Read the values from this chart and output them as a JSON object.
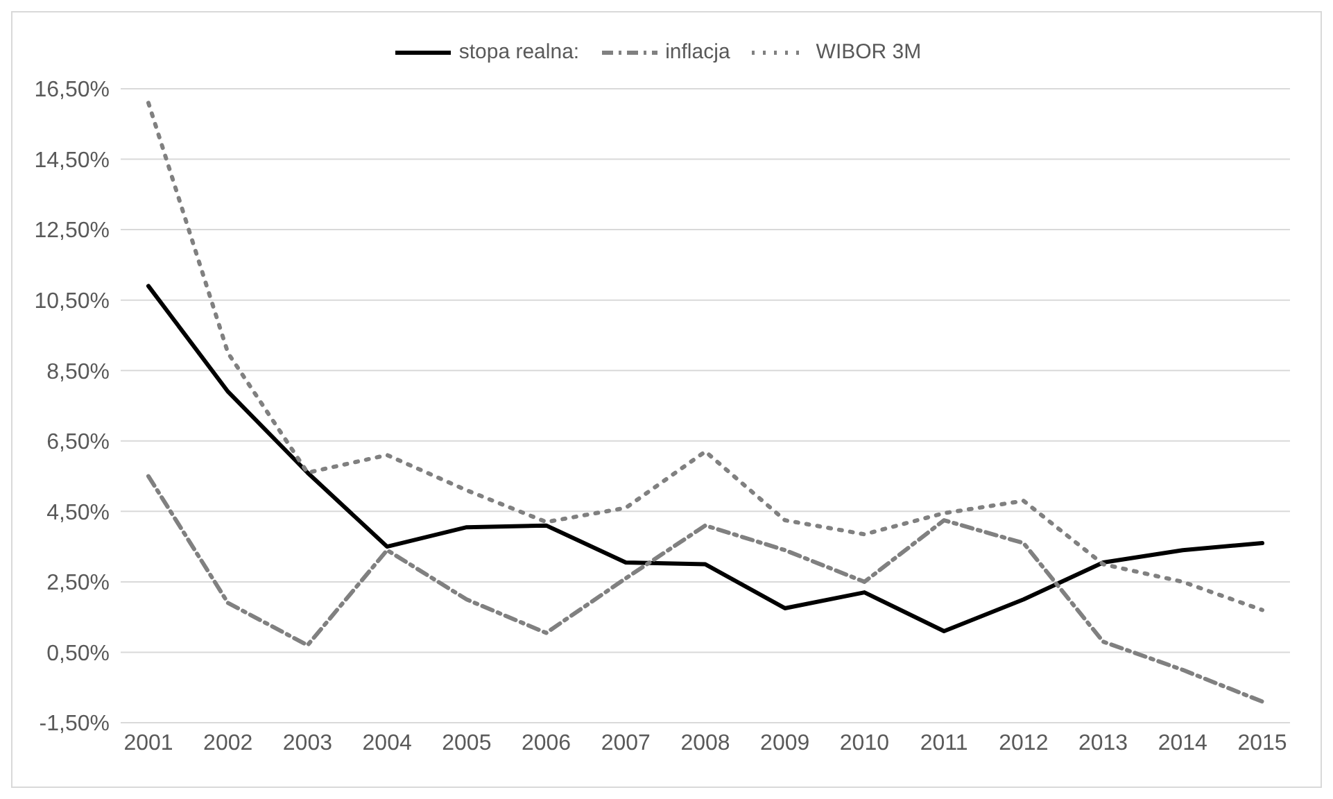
{
  "chart_data": {
    "type": "line",
    "categories": [
      "2001",
      "2002",
      "2003",
      "2004",
      "2005",
      "2006",
      "2007",
      "2008",
      "2009",
      "2010",
      "2011",
      "2012",
      "2013",
      "2014",
      "2015"
    ],
    "series": [
      {
        "name": "stopa realna:",
        "color": "#000000",
        "line_style": "solid",
        "values": [
          10.9,
          7.9,
          5.6,
          3.5,
          4.05,
          4.1,
          3.05,
          3.0,
          1.75,
          2.2,
          1.1,
          2.0,
          3.05,
          3.4,
          3.6
        ]
      },
      {
        "name": "inflacja",
        "color": "#808080",
        "line_style": "dashed",
        "values": [
          5.5,
          1.9,
          0.7,
          3.4,
          2.0,
          1.05,
          2.6,
          4.1,
          3.4,
          2.5,
          4.25,
          3.6,
          0.8,
          0.0,
          -0.9
        ]
      },
      {
        "name": "WIBOR 3M",
        "color": "#808080",
        "line_style": "dotted",
        "values": [
          16.1,
          9.0,
          5.6,
          6.1,
          5.1,
          4.2,
          4.6,
          6.2,
          4.25,
          3.85,
          4.45,
          4.8,
          3.0,
          2.5,
          1.7
        ]
      }
    ],
    "ylim": [
      -1.5,
      16.5
    ],
    "yticks": [
      {
        "value": -1.5,
        "label": "-1,50%"
      },
      {
        "value": 0.5,
        "label": "0,50%"
      },
      {
        "value": 2.5,
        "label": "2,50%"
      },
      {
        "value": 4.5,
        "label": "4,50%"
      },
      {
        "value": 6.5,
        "label": "6,50%"
      },
      {
        "value": 8.5,
        "label": "8,50%"
      },
      {
        "value": 10.5,
        "label": "10,50%"
      },
      {
        "value": 12.5,
        "label": "12,50%"
      },
      {
        "value": 14.5,
        "label": "14,50%"
      },
      {
        "value": 16.5,
        "label": "16,50%"
      }
    ],
    "grid": "y",
    "legend": "top",
    "marker": "none"
  }
}
